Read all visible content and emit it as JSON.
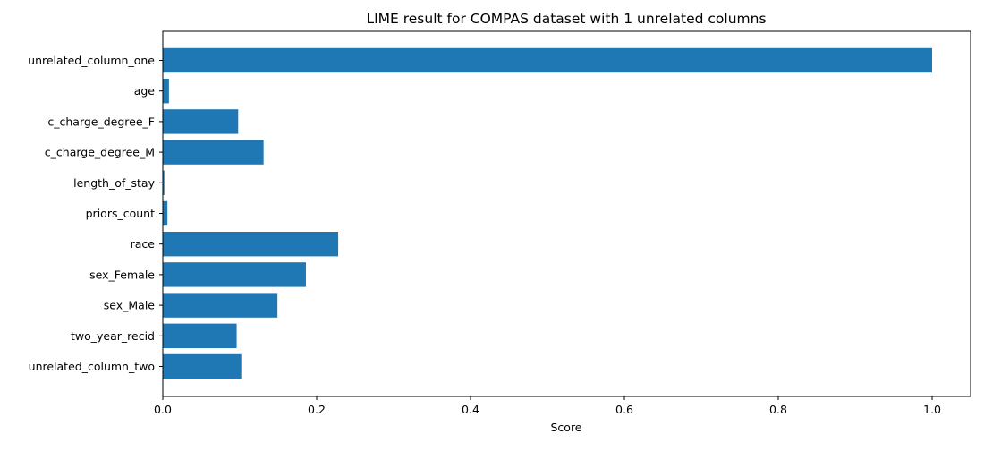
{
  "chart_data": {
    "type": "bar",
    "orientation": "horizontal",
    "title": "LIME result for COMPAS dataset with 1 unrelated columns",
    "xlabel": "Score",
    "ylabel": "",
    "xlim": [
      0.0,
      1.05
    ],
    "xticks": [
      "0.0",
      "0.2",
      "0.4",
      "0.6",
      "0.8",
      "1.0"
    ],
    "grid": false,
    "bar_color": "#1f77b4",
    "categories": [
      "unrelated_column_one",
      "age",
      "c_charge_degree_F",
      "c_charge_degree_M",
      "length_of_stay",
      "priors_count",
      "race",
      "sex_Female",
      "sex_Male",
      "two_year_recid",
      "unrelated_column_two"
    ],
    "values": [
      1.0,
      0.008,
      0.098,
      0.131,
      0.002,
      0.006,
      0.228,
      0.186,
      0.149,
      0.096,
      0.102
    ]
  }
}
